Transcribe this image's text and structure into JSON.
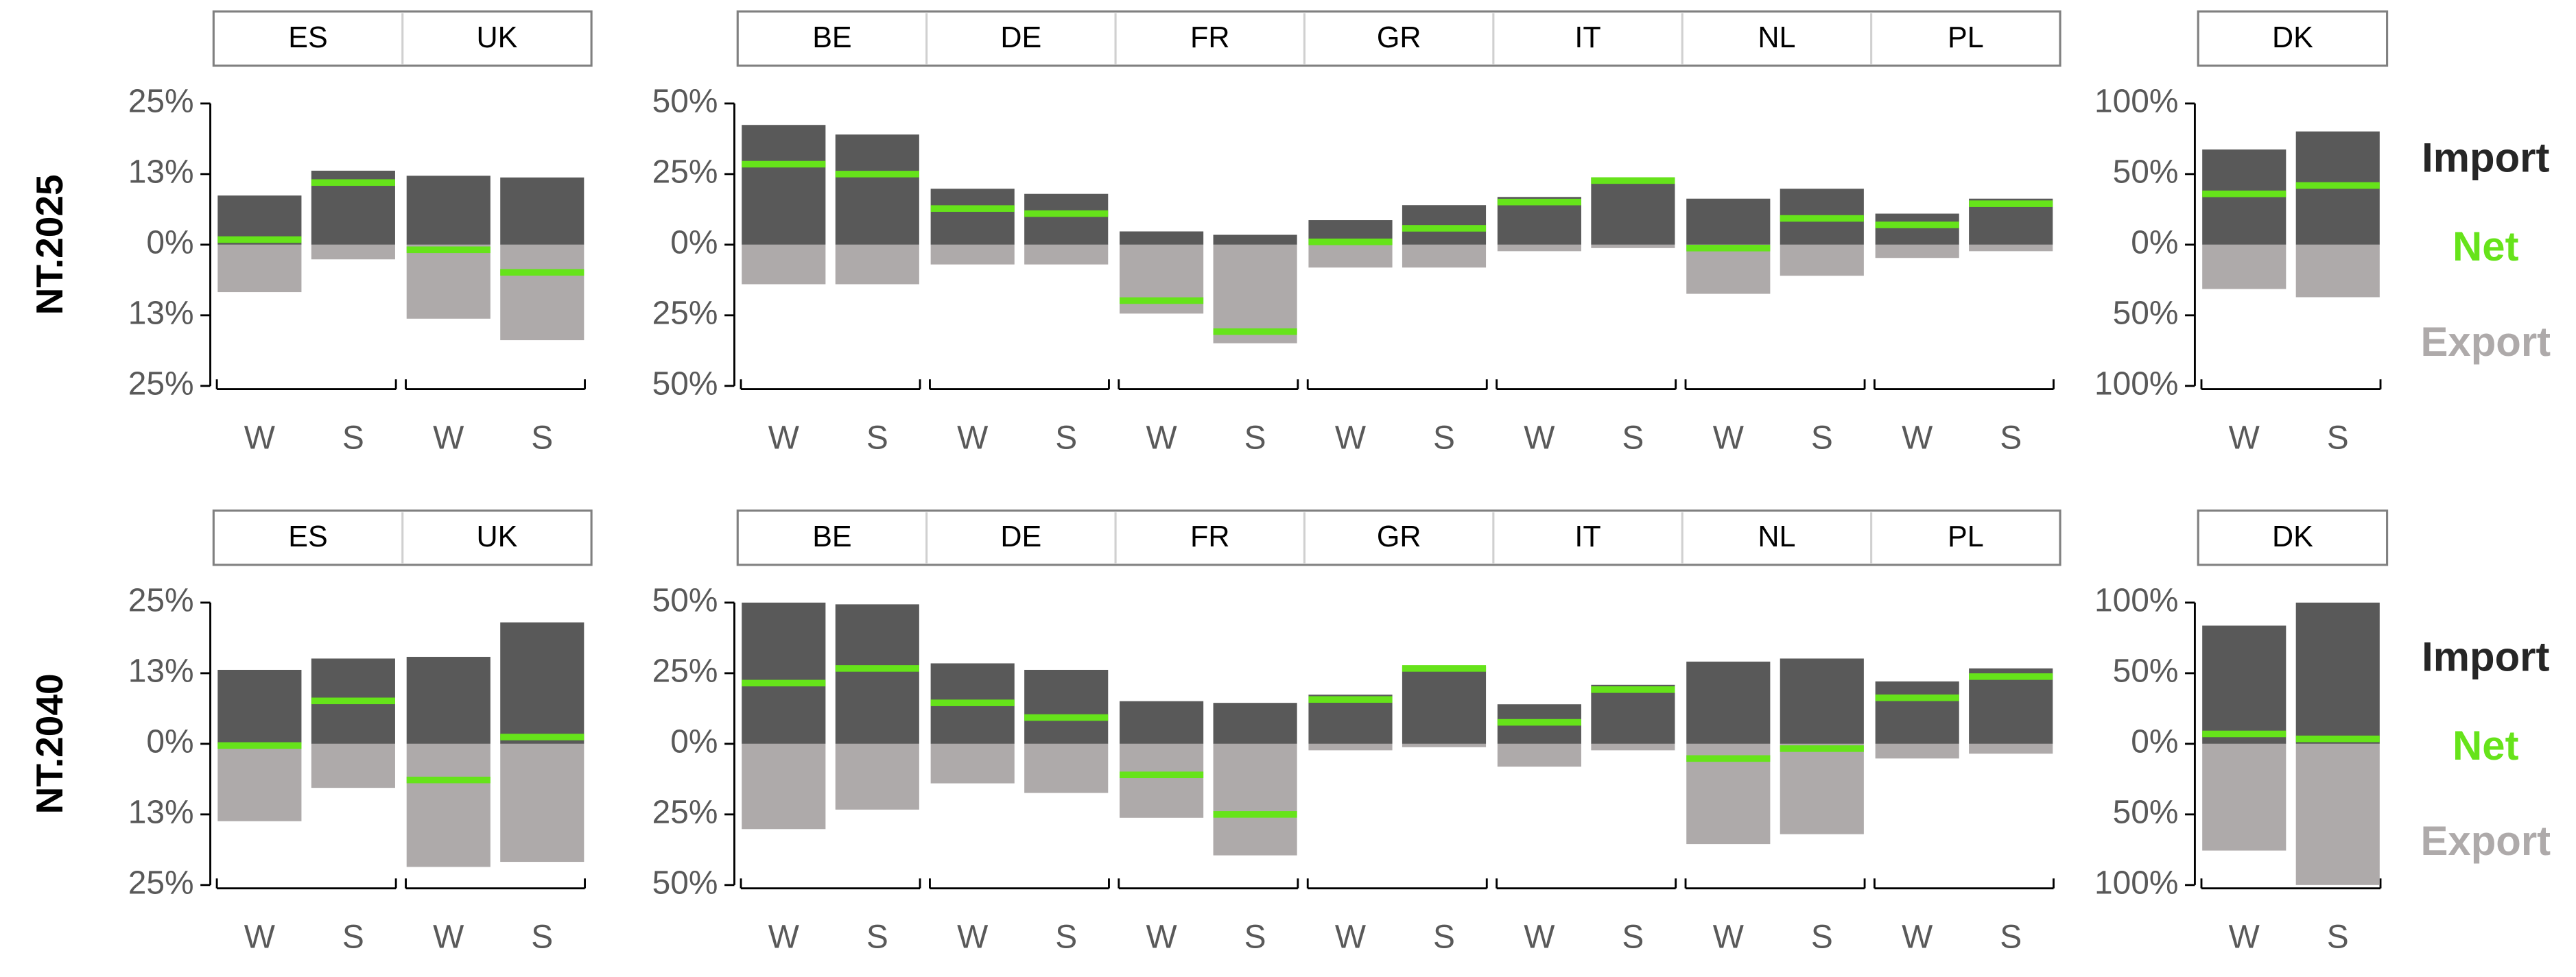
{
  "row_labels": [
    "NT.2025",
    "NT.2040"
  ],
  "chart_data": [
    {
      "type": "bar",
      "groups": [
        "ES",
        "UK"
      ],
      "categories": [
        "W",
        "S",
        "W",
        "S"
      ],
      "ylim": [
        -25,
        25
      ],
      "yticks": [
        {
          "value": 25,
          "label": "25%"
        },
        {
          "value": 12.5,
          "label": "13%"
        },
        {
          "value": 0,
          "label": "0%"
        },
        {
          "value": -12.5,
          "label": "13%"
        },
        {
          "value": -25,
          "label": "25%"
        }
      ],
      "series": [
        {
          "name": "Import",
          "color": "#595959",
          "values": [
            8.7,
            13.1,
            12.2,
            11.9
          ]
        },
        {
          "name": "Net",
          "color": "#66e31a",
          "type": "marker",
          "values": [
            0.9,
            11.0,
            -0.9,
            -4.9
          ]
        },
        {
          "name": "Export",
          "color": "#aeaaaa",
          "values": [
            -8.4,
            -2.6,
            -13.1,
            -16.9
          ]
        }
      ]
    },
    {
      "type": "bar",
      "groups": [
        "BE",
        "DE",
        "FR",
        "GR",
        "IT",
        "NL",
        "PL"
      ],
      "categories": [
        "W",
        "S",
        "W",
        "S",
        "W",
        "S",
        "W",
        "S",
        "W",
        "S",
        "W",
        "S",
        "W",
        "S"
      ],
      "ylim": [
        -50,
        50
      ],
      "yticks": [
        {
          "value": 50,
          "label": "50%"
        },
        {
          "value": 25,
          "label": "25%"
        },
        {
          "value": 0,
          "label": "0%"
        },
        {
          "value": -25,
          "label": "25%"
        },
        {
          "value": -50,
          "label": "50%"
        }
      ],
      "series": [
        {
          "name": "Import",
          "color": "#595959",
          "values": [
            42.4,
            39,
            19.8,
            18,
            4.7,
            3.5,
            8.7,
            14,
            16.9,
            23.8,
            16.3,
            19.8,
            11,
            16.3
          ]
        },
        {
          "name": "Net",
          "color": "#66e31a",
          "type": "marker",
          "values": [
            28.5,
            25,
            12.8,
            11,
            -19.8,
            -30.8,
            1,
            5.8,
            15.1,
            22.7,
            -1.2,
            9.3,
            7,
            14.5
          ]
        },
        {
          "name": "Export",
          "color": "#aeaaaa",
          "values": [
            -14,
            -14,
            -7,
            -7,
            -24.4,
            -34.9,
            -8.1,
            -8.1,
            -2.3,
            -1.2,
            -17.4,
            -11,
            -4.7,
            -2.3
          ]
        }
      ]
    },
    {
      "type": "bar",
      "groups": [
        "DK"
      ],
      "categories": [
        "W",
        "S"
      ],
      "legend": "right",
      "ylim": [
        -100,
        100
      ],
      "yticks": [
        {
          "value": 100,
          "label": "100%"
        },
        {
          "value": 50,
          "label": "50%"
        },
        {
          "value": 0,
          "label": "0%"
        },
        {
          "value": -50,
          "label": "50%"
        },
        {
          "value": -100,
          "label": "100%"
        }
      ],
      "series": [
        {
          "name": "Import",
          "color": "#595959",
          "values": [
            67.4,
            80.2
          ]
        },
        {
          "name": "Net",
          "color": "#66e31a",
          "type": "marker",
          "values": [
            36,
            41.9
          ]
        },
        {
          "name": "Export",
          "color": "#aeaaaa",
          "values": [
            -31.4,
            -37.2
          ]
        }
      ]
    },
    {
      "type": "bar",
      "groups": [
        "ES",
        "UK"
      ],
      "categories": [
        "W",
        "S",
        "W",
        "S"
      ],
      "ylim": [
        -25,
        25
      ],
      "yticks": [
        {
          "value": 25,
          "label": "25%"
        },
        {
          "value": 12.5,
          "label": "13%"
        },
        {
          "value": 0,
          "label": "0%"
        },
        {
          "value": -12.5,
          "label": "13%"
        },
        {
          "value": -25,
          "label": "25%"
        }
      ],
      "series": [
        {
          "name": "Import",
          "color": "#595959",
          "values": [
            13.1,
            15.1,
            15.4,
            21.5
          ]
        },
        {
          "name": "Net",
          "color": "#66e31a",
          "type": "marker",
          "values": [
            -0.3,
            7.6,
            -6.4,
            1.2
          ]
        },
        {
          "name": "Export",
          "color": "#aeaaaa",
          "values": [
            -13.7,
            -7.8,
            -21.8,
            -20.9
          ]
        }
      ]
    },
    {
      "type": "bar",
      "groups": [
        "BE",
        "DE",
        "FR",
        "GR",
        "IT",
        "NL",
        "PL"
      ],
      "categories": [
        "W",
        "S",
        "W",
        "S",
        "W",
        "S",
        "W",
        "S",
        "W",
        "S",
        "W",
        "S",
        "W",
        "S"
      ],
      "ylim": [
        -50,
        50
      ],
      "yticks": [
        {
          "value": 50,
          "label": "50%"
        },
        {
          "value": 25,
          "label": "25%"
        },
        {
          "value": 0,
          "label": "0%"
        },
        {
          "value": -25,
          "label": "25%"
        },
        {
          "value": -50,
          "label": "50%"
        }
      ],
      "series": [
        {
          "name": "Import",
          "color": "#595959",
          "values": [
            50,
            49.4,
            28.5,
            26.2,
            15.1,
            14.5,
            17.4,
            27.3,
            14,
            20.9,
            29.1,
            30.2,
            22.1,
            26.7
          ]
        },
        {
          "name": "Net",
          "color": "#66e31a",
          "type": "marker",
          "values": [
            21.5,
            26.7,
            14.5,
            9.3,
            -11,
            -25,
            15.7,
            26.7,
            7.6,
            19.2,
            -5.2,
            -1.7,
            16.3,
            23.8
          ]
        },
        {
          "name": "Export",
          "color": "#aeaaaa",
          "values": [
            -30.2,
            -23.3,
            -14,
            -17.4,
            -26.2,
            -39.5,
            -2.3,
            -1.2,
            -8.1,
            -2.3,
            -35.5,
            -32,
            -5.2,
            -3.5
          ]
        }
      ]
    },
    {
      "type": "bar",
      "groups": [
        "DK"
      ],
      "categories": [
        "W",
        "S"
      ],
      "legend": "right",
      "ylim": [
        -100,
        100
      ],
      "yticks": [
        {
          "value": 100,
          "label": "100%"
        },
        {
          "value": 50,
          "label": "50%"
        },
        {
          "value": 0,
          "label": "0%"
        },
        {
          "value": -50,
          "label": "50%"
        },
        {
          "value": -100,
          "label": "100%"
        }
      ],
      "series": [
        {
          "name": "Import",
          "color": "#595959",
          "values": [
            83.7,
            100
          ]
        },
        {
          "name": "Net",
          "color": "#66e31a",
          "type": "marker",
          "values": [
            7,
            3.5
          ]
        },
        {
          "name": "Export",
          "color": "#aeaaaa",
          "values": [
            -75.6,
            -100
          ]
        }
      ]
    }
  ]
}
